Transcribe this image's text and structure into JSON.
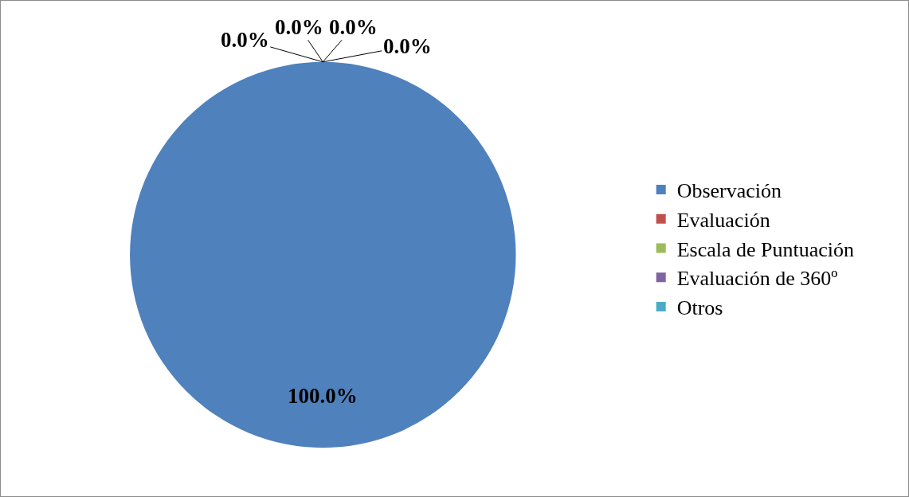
{
  "chart_data": {
    "type": "pie",
    "categories": [
      "Observación",
      "Evaluación",
      "Escala de Puntuación",
      "Evaluación de 360º",
      "Otros"
    ],
    "values": [
      100,
      0,
      0,
      0,
      0
    ],
    "colors": [
      "#4f81bd",
      "#c0504d",
      "#9bbb59",
      "#8064a2",
      "#4bacc6"
    ],
    "value_labels": [
      "100.0%",
      "0.0%",
      "0.0%",
      "0.0%",
      "0.0%"
    ],
    "legend": "right"
  }
}
